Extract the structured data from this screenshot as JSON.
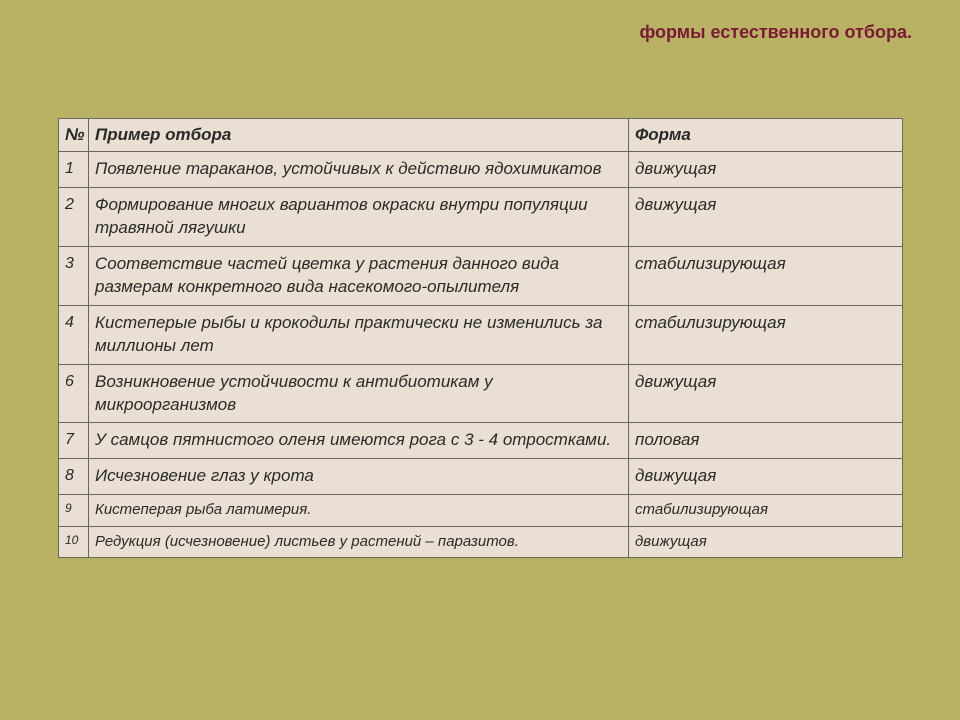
{
  "title": "формы естественного отбора.",
  "columns": [
    "№",
    "Пример отбора",
    "Форма"
  ],
  "rows": [
    {
      "num": "1",
      "example": "Появление тараканов, устойчивых к действию ядохимикатов",
      "form": "движущая",
      "small": false
    },
    {
      "num": "2",
      "example": "Формирование многих вариантов окраски внутри популяции травяной лягушки",
      "form": "движущая",
      "small": false
    },
    {
      "num": "3",
      "example": "Соответствие частей цветка у растения данного вида размерам конкретного вида насекомого-опылителя",
      "form": "стабилизирующая",
      "small": false
    },
    {
      "num": "4",
      "example": "Кистеперые рыбы и крокодилы практически не изменились за миллионы лет",
      "form": "стабилизирующая",
      "small": false
    },
    {
      "num": "6",
      "example": "Возникновение устойчивости к антибиотикам у микроорганизмов",
      "form": "движущая",
      "small": false
    },
    {
      "num": "7",
      "example": "У самцов пятнистого оленя имеются рога с 3 - 4 отростками.",
      "form": "половая",
      "small": false
    },
    {
      "num": "8",
      "example": "Исчезновение глаз у крота",
      "form": "движущая",
      "small": false
    },
    {
      "num": "9",
      "example": "Кистеперая рыба латимерия.",
      "form": "стабилизирующая",
      "small": true
    },
    {
      "num": "10",
      "example": "Редукция (исчезновение) листьев у растений – паразитов.",
      "form": "движущая",
      "small": true
    }
  ],
  "style": {
    "background_color": "#b9b164",
    "title_color": "#7a1a35",
    "cell_background": "#e9e0d3",
    "border_color": "#6a685a",
    "text_color": "#2a2a2a",
    "title_fontsize": 18,
    "header_fontsize": 17,
    "cell_fontsize": 17,
    "small_cell_fontsize": 15
  }
}
